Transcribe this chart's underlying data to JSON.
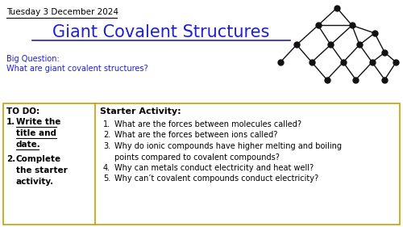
{
  "date": "Tuesday 3 December 2024",
  "title": "Giant Covalent Structures",
  "big_question_label": "Big Question:",
  "big_question": "What are giant covalent structures?",
  "todo_header": "TO DO:",
  "starter_header": "Starter Activity:",
  "starter_items": [
    "What are the forces between molecules called?",
    "What are the forces between ions called?",
    "Why do ionic compounds have higher melting and boiling\npoints compared to covalent compounds?",
    "Why can metals conduct electricity and heat well?",
    "Why can’t covalent compounds conduct electricity?"
  ],
  "bg_color": "#ffffff",
  "title_color": "#2020cc",
  "date_color": "#000000",
  "big_q_color": "#2020cc",
  "border_color": "#c8a000",
  "divider_color": "#c8a000",
  "node_color": "#111111",
  "edge_color": "#111111",
  "figw": 5.0,
  "figh": 2.81
}
